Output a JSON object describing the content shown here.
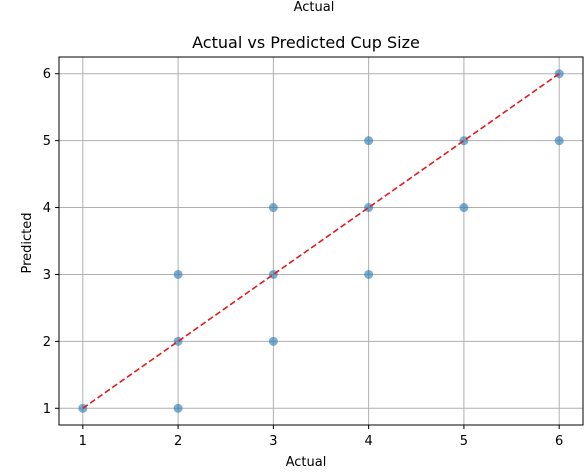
{
  "header_caption": "Actual",
  "chart_data": {
    "type": "scatter",
    "title": "Actual vs Predicted Cup Size",
    "xlabel": "Actual",
    "ylabel": "Predicted",
    "xlim": [
      0.75,
      6.25
    ],
    "ylim": [
      0.75,
      6.25
    ],
    "xticks": [
      "1",
      "2",
      "3",
      "4",
      "5",
      "6"
    ],
    "yticks": [
      "1",
      "2",
      "3",
      "4",
      "5",
      "6"
    ],
    "grid": true,
    "points": [
      {
        "x": 1,
        "y": 1
      },
      {
        "x": 2,
        "y": 1
      },
      {
        "x": 2,
        "y": 2
      },
      {
        "x": 2,
        "y": 3
      },
      {
        "x": 3,
        "y": 2
      },
      {
        "x": 3,
        "y": 3
      },
      {
        "x": 3,
        "y": 4
      },
      {
        "x": 4,
        "y": 3
      },
      {
        "x": 4,
        "y": 4
      },
      {
        "x": 4,
        "y": 5
      },
      {
        "x": 5,
        "y": 4
      },
      {
        "x": 5,
        "y": 5
      },
      {
        "x": 6,
        "y": 5
      },
      {
        "x": 6,
        "y": 6
      }
    ],
    "reference_line": {
      "x": [
        1,
        6
      ],
      "y": [
        1,
        6
      ],
      "style": "dashed",
      "color": "#e41a1c"
    },
    "point_color": "#1f77b4",
    "grid_color": "#b0b0b0"
  }
}
